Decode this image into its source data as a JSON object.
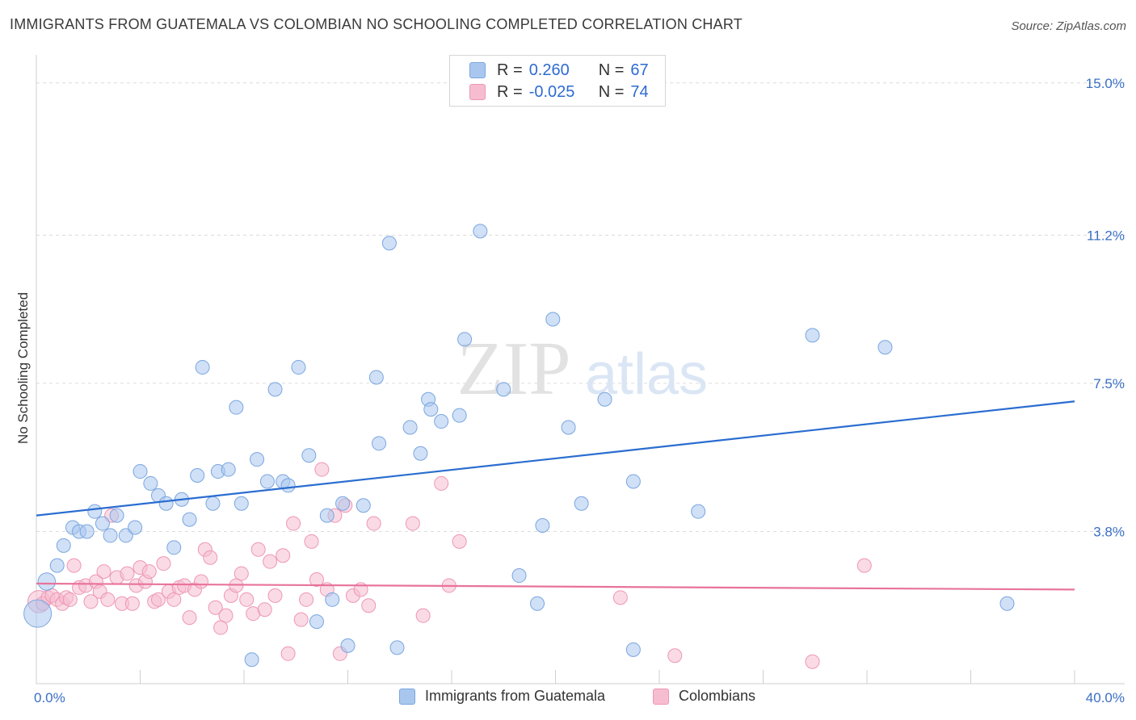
{
  "header": {
    "title": "IMMIGRANTS FROM GUATEMALA VS COLOMBIAN NO SCHOOLING COMPLETED CORRELATION CHART",
    "source": "Source: ZipAtlas.com"
  },
  "watermark": {
    "part1": "ZIP",
    "part2": "atlas"
  },
  "colors": {
    "blue_fill": "#a9c7ee",
    "blue_stroke": "#7aa6e0",
    "blue_line": "#2a6dd0",
    "pink_fill": "#f6bdd0",
    "pink_stroke": "#ee96b4",
    "pink_line": "#e8739c",
    "accent_text": "#2e6bd1"
  },
  "legend": {
    "rows": [
      {
        "r_label": "R =",
        "r_value": "0.260",
        "n_label": "N =",
        "n_value": "67"
      },
      {
        "r_label": "R =",
        "r_value": "-0.025",
        "n_label": "N =",
        "n_value": "74"
      }
    ]
  },
  "bottom_legend": {
    "series1": "Immigrants from Guatemala",
    "series2": "Colombians"
  },
  "chart_data": {
    "type": "scatter",
    "title": "IMMIGRANTS FROM GUATEMALA VS COLOMBIAN NO SCHOOLING COMPLETED CORRELATION CHART",
    "xlabel": "",
    "ylabel": "No Schooling Completed",
    "xlim": [
      0,
      40
    ],
    "ylim": [
      0,
      15.5
    ],
    "x_tick_labels": [
      "0.0%",
      "40.0%"
    ],
    "y_ticks": [
      3.8,
      7.5,
      11.2,
      15.0
    ],
    "y_tick_labels": [
      "3.8%",
      "7.5%",
      "11.2%",
      "15.0%"
    ],
    "grid": true,
    "series": [
      {
        "name": "Immigrants from Guatemala",
        "R": 0.26,
        "N": 67,
        "trend": {
          "x": [
            0,
            40
          ],
          "y": [
            4.2,
            7.05
          ]
        },
        "points": [
          [
            0.05,
            1.75
          ],
          [
            0.4,
            2.55
          ],
          [
            0.8,
            2.95
          ],
          [
            1.05,
            3.45
          ],
          [
            1.4,
            3.9
          ],
          [
            1.65,
            3.8
          ],
          [
            1.95,
            3.8
          ],
          [
            2.25,
            4.3
          ],
          [
            2.55,
            4.0
          ],
          [
            2.85,
            3.7
          ],
          [
            3.1,
            4.2
          ],
          [
            3.45,
            3.7
          ],
          [
            3.8,
            3.9
          ],
          [
            4.0,
            5.3
          ],
          [
            4.4,
            5.0
          ],
          [
            4.7,
            4.7
          ],
          [
            5.0,
            4.5
          ],
          [
            5.3,
            3.4
          ],
          [
            5.6,
            4.6
          ],
          [
            5.9,
            4.1
          ],
          [
            6.2,
            5.2
          ],
          [
            6.4,
            7.9
          ],
          [
            6.8,
            4.5
          ],
          [
            7.0,
            5.3
          ],
          [
            7.4,
            5.35
          ],
          [
            7.7,
            6.9
          ],
          [
            7.9,
            4.5
          ],
          [
            8.3,
            0.6
          ],
          [
            8.5,
            5.6
          ],
          [
            8.9,
            5.05
          ],
          [
            9.2,
            7.35
          ],
          [
            9.5,
            5.05
          ],
          [
            9.7,
            4.95
          ],
          [
            10.1,
            7.9
          ],
          [
            10.5,
            5.7
          ],
          [
            10.8,
            1.55
          ],
          [
            11.2,
            4.2
          ],
          [
            11.4,
            2.1
          ],
          [
            11.8,
            4.5
          ],
          [
            12.0,
            0.95
          ],
          [
            12.6,
            4.45
          ],
          [
            13.1,
            7.65
          ],
          [
            13.2,
            6.0
          ],
          [
            13.6,
            11.0
          ],
          [
            13.9,
            0.9
          ],
          [
            14.4,
            6.4
          ],
          [
            14.8,
            5.75
          ],
          [
            15.1,
            7.1
          ],
          [
            15.2,
            6.85
          ],
          [
            15.6,
            6.55
          ],
          [
            16.3,
            6.7
          ],
          [
            16.5,
            8.6
          ],
          [
            17.1,
            11.3
          ],
          [
            18.0,
            7.35
          ],
          [
            18.6,
            2.7
          ],
          [
            19.3,
            2.0
          ],
          [
            19.5,
            3.95
          ],
          [
            19.9,
            9.1
          ],
          [
            20.5,
            6.4
          ],
          [
            21.0,
            4.5
          ],
          [
            21.9,
            7.1
          ],
          [
            23.0,
            0.85
          ],
          [
            23.0,
            5.05
          ],
          [
            25.5,
            4.3
          ],
          [
            29.9,
            8.7
          ],
          [
            32.7,
            8.4
          ],
          [
            37.4,
            2.0
          ]
        ],
        "point_size": [
          4,
          1.6,
          1,
          1,
          1,
          1,
          1,
          1,
          1,
          1,
          1,
          1,
          1,
          1,
          1,
          1,
          1,
          1,
          1,
          1,
          1,
          1,
          1,
          1,
          1,
          1,
          1,
          1,
          1,
          1,
          1,
          1,
          1,
          1,
          1,
          1,
          1,
          1,
          1,
          1,
          1,
          1,
          1,
          1,
          1,
          1,
          1,
          1,
          1,
          1,
          1,
          1,
          1,
          1,
          1,
          1,
          1,
          1,
          1,
          1,
          1,
          1,
          1,
          1,
          1,
          1,
          1
        ]
      },
      {
        "name": "Colombians",
        "R": -0.025,
        "N": 74,
        "trend": {
          "x": [
            0,
            40
          ],
          "y": [
            2.5,
            2.35
          ]
        },
        "points": [
          [
            0.1,
            2.05
          ],
          [
            0.25,
            2.0
          ],
          [
            0.45,
            2.15
          ],
          [
            0.6,
            2.2
          ],
          [
            0.8,
            2.1
          ],
          [
            1.0,
            2.0
          ],
          [
            1.15,
            2.15
          ],
          [
            1.3,
            2.1
          ],
          [
            1.45,
            2.95
          ],
          [
            1.65,
            2.4
          ],
          [
            1.9,
            2.45
          ],
          [
            2.1,
            2.05
          ],
          [
            2.3,
            2.55
          ],
          [
            2.45,
            2.3
          ],
          [
            2.6,
            2.8
          ],
          [
            2.75,
            2.1
          ],
          [
            2.9,
            4.2
          ],
          [
            3.1,
            2.65
          ],
          [
            3.3,
            2.0
          ],
          [
            3.5,
            2.75
          ],
          [
            3.7,
            2.0
          ],
          [
            3.85,
            2.45
          ],
          [
            4.0,
            2.9
          ],
          [
            4.2,
            2.55
          ],
          [
            4.35,
            2.8
          ],
          [
            4.55,
            2.05
          ],
          [
            4.7,
            2.1
          ],
          [
            4.9,
            3.0
          ],
          [
            5.1,
            2.3
          ],
          [
            5.3,
            2.1
          ],
          [
            5.5,
            2.4
          ],
          [
            5.7,
            2.45
          ],
          [
            5.9,
            1.65
          ],
          [
            6.1,
            2.35
          ],
          [
            6.35,
            2.55
          ],
          [
            6.5,
            3.35
          ],
          [
            6.7,
            3.15
          ],
          [
            6.9,
            1.9
          ],
          [
            7.1,
            1.4
          ],
          [
            7.3,
            1.7
          ],
          [
            7.5,
            2.2
          ],
          [
            7.7,
            2.45
          ],
          [
            7.9,
            2.75
          ],
          [
            8.1,
            2.1
          ],
          [
            8.35,
            1.75
          ],
          [
            8.55,
            3.35
          ],
          [
            8.8,
            1.85
          ],
          [
            9.0,
            3.05
          ],
          [
            9.2,
            2.2
          ],
          [
            9.5,
            3.2
          ],
          [
            9.7,
            0.75
          ],
          [
            9.9,
            4.0
          ],
          [
            10.2,
            1.6
          ],
          [
            10.4,
            2.1
          ],
          [
            10.6,
            3.55
          ],
          [
            10.8,
            2.6
          ],
          [
            11.0,
            5.35
          ],
          [
            11.2,
            2.35
          ],
          [
            11.5,
            4.2
          ],
          [
            11.7,
            0.75
          ],
          [
            11.9,
            4.45
          ],
          [
            12.2,
            2.2
          ],
          [
            12.5,
            2.35
          ],
          [
            12.8,
            1.95
          ],
          [
            13.0,
            4.0
          ],
          [
            14.5,
            4.0
          ],
          [
            14.9,
            1.7
          ],
          [
            15.6,
            5.0
          ],
          [
            15.9,
            2.45
          ],
          [
            16.3,
            3.55
          ],
          [
            22.5,
            2.15
          ],
          [
            24.6,
            0.7
          ],
          [
            29.9,
            0.55
          ],
          [
            31.9,
            2.95
          ]
        ],
        "point_size": [
          2.6,
          1,
          1,
          1,
          1,
          1,
          1,
          1,
          1,
          1,
          1,
          1,
          1,
          1,
          1,
          1,
          1,
          1,
          1,
          1,
          1,
          1,
          1,
          1,
          1,
          1,
          1,
          1,
          1,
          1,
          1,
          1,
          1,
          1,
          1,
          1,
          1,
          1,
          1,
          1,
          1,
          1,
          1,
          1,
          1,
          1,
          1,
          1,
          1,
          1,
          1,
          1,
          1,
          1,
          1,
          1,
          1,
          1,
          1,
          1,
          1,
          1,
          1,
          1,
          1,
          1,
          1,
          1,
          1,
          1,
          1,
          1,
          1,
          1
        ]
      }
    ]
  }
}
